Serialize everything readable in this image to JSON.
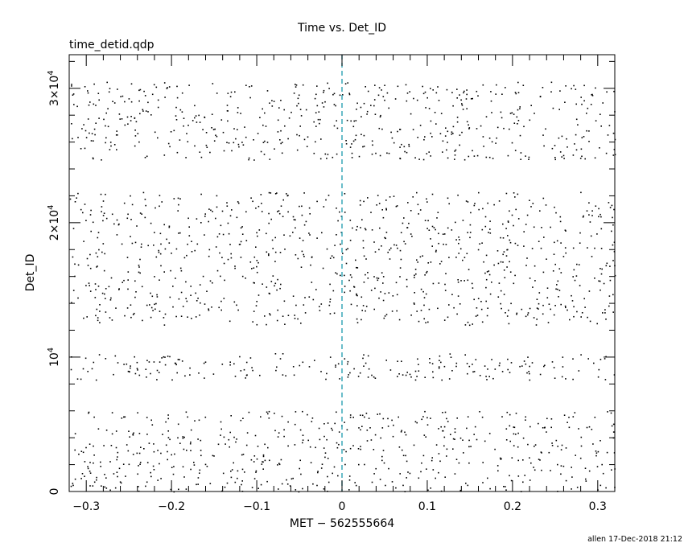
{
  "chart_data": {
    "type": "scatter",
    "title": "Time vs. Det_ID",
    "subtitle": "time_detid.qdp",
    "xlabel": "MET − 562555664",
    "ylabel": "Det_ID",
    "xlim": [
      -0.32,
      0.32
    ],
    "ylim": [
      0,
      32500
    ],
    "x_ticks": [
      {
        "value": -0.3,
        "label": "−0.3"
      },
      {
        "value": -0.2,
        "label": "−0.2"
      },
      {
        "value": -0.1,
        "label": "−0.1"
      },
      {
        "value": 0,
        "label": "0"
      },
      {
        "value": 0.1,
        "label": "0.1"
      },
      {
        "value": 0.2,
        "label": "0.2"
      },
      {
        "value": 0.3,
        "label": "0.3"
      }
    ],
    "y_ticks": [
      {
        "value": 0,
        "mantissa": "0",
        "exponent": ""
      },
      {
        "value": 10000,
        "mantissa": "10",
        "exponent": "4"
      },
      {
        "value": 20000,
        "mantissa": "2×10",
        "exponent": "4"
      },
      {
        "value": 30000,
        "mantissa": "3×10",
        "exponent": "4"
      }
    ],
    "reference_line": {
      "x": 0,
      "style": "dashed",
      "color": "#2aa1b3"
    },
    "point_color": "#000000",
    "point_bands": [
      {
        "y_min": 0,
        "y_max": 6000,
        "count": 560
      },
      {
        "y_min": 8300,
        "y_max": 10300,
        "count": 210
      },
      {
        "y_min": 12400,
        "y_max": 22300,
        "count": 900
      },
      {
        "y_min": 24700,
        "y_max": 30500,
        "count": 560
      }
    ]
  },
  "footer": {
    "text": "allen 17-Dec-2018 21:12"
  }
}
